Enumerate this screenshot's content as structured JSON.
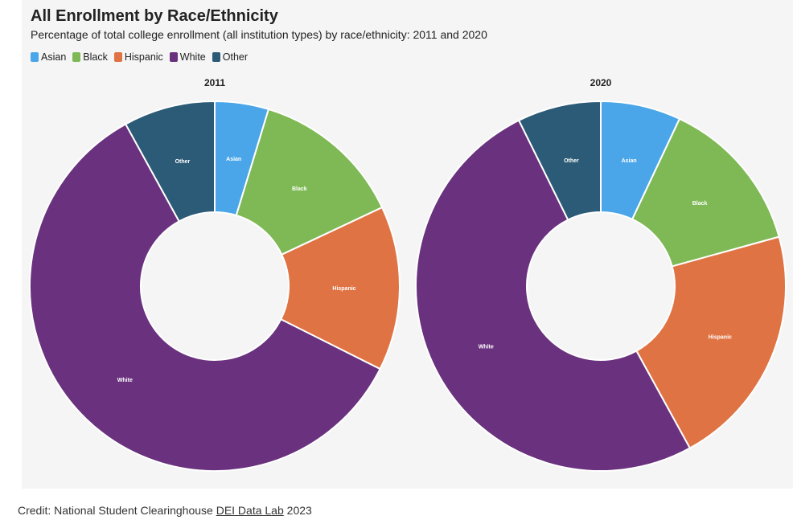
{
  "title": "All Enrollment by Race/Ethnicity",
  "subtitle": "Percentage of total college enrollment (all institution types) by race/ethnicity: 2011 and 2020",
  "credit": {
    "prefix": "Credit: National Student Clearinghouse",
    "link_text": "DEI Data Lab",
    "suffix": "2023"
  },
  "legend": [
    {
      "label": "Asian",
      "color": "#4aa6e9"
    },
    {
      "label": "Black",
      "color": "#7fb955"
    },
    {
      "label": "Hispanic",
      "color": "#e07343"
    },
    {
      "label": "White",
      "color": "#6a327e"
    },
    {
      "label": "Other",
      "color": "#2c5b77"
    }
  ],
  "chart_data": [
    {
      "type": "pie",
      "donut": true,
      "title": "2011",
      "categories": [
        "Asian",
        "Black",
        "Hispanic",
        "White",
        "Other"
      ],
      "values": [
        4.7,
        13.3,
        14.4,
        59.6,
        8.0
      ],
      "colors": [
        "#4aa6e9",
        "#7fb955",
        "#e07343",
        "#6a327e",
        "#2c5b77"
      ]
    },
    {
      "type": "pie",
      "donut": true,
      "title": "2020",
      "categories": [
        "Asian",
        "Black",
        "Hispanic",
        "White",
        "Other"
      ],
      "values": [
        7.0,
        13.7,
        21.3,
        50.7,
        7.3
      ],
      "colors": [
        "#4aa6e9",
        "#7fb955",
        "#e07343",
        "#6a327e",
        "#2c5b77"
      ]
    }
  ]
}
